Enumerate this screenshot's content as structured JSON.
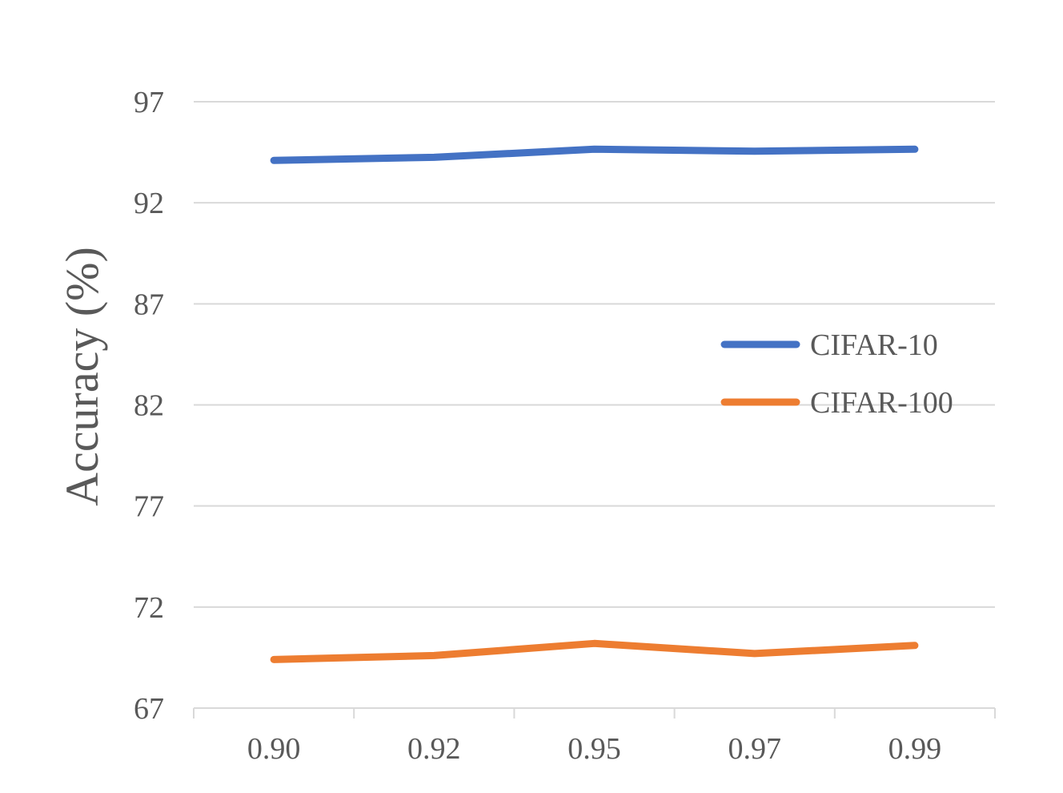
{
  "chart_data": {
    "type": "line",
    "title": "",
    "xlabel": "",
    "ylabel": "Accuracy (%)",
    "categories": [
      "0.90",
      "0.92",
      "0.95",
      "0.97",
      "0.99"
    ],
    "ylim": [
      67,
      97
    ],
    "yticks": [
      "67",
      "72",
      "77",
      "82",
      "87",
      "92",
      "97"
    ],
    "grid": "horizontal",
    "legend_position": "right",
    "series": [
      {
        "name": "CIFAR-10",
        "color": "#4472C4",
        "values": [
          94.1,
          94.25,
          94.65,
          94.55,
          94.65
        ]
      },
      {
        "name": "CIFAR-100",
        "color": "#ED7D31",
        "values": [
          69.4,
          69.6,
          70.2,
          69.7,
          70.1
        ]
      }
    ]
  }
}
